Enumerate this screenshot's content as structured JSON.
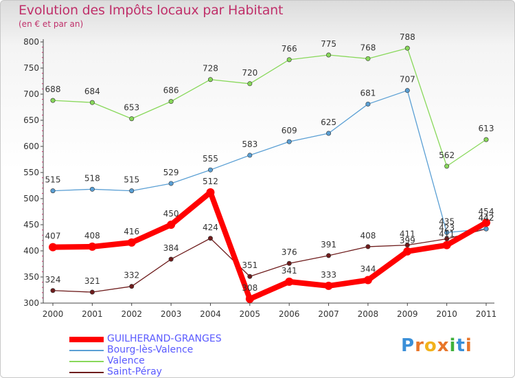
{
  "header": {
    "title": "Evolution des Impôts locaux par Habitant",
    "subtitle": "(en € et par an)"
  },
  "brand": {
    "letters": [
      "P",
      "r",
      "o",
      "x",
      "i",
      "t",
      "i"
    ],
    "colors": [
      "#3a8fd8",
      "#e8762a",
      "#f2b21c",
      "#e8762a",
      "#3fb13b",
      "#3a8fd8",
      "#e8762a"
    ]
  },
  "chart_data": {
    "type": "line",
    "x": [
      "2000",
      "2001",
      "2002",
      "2003",
      "2004",
      "2005",
      "2006",
      "2007",
      "2008",
      "2009",
      "2010",
      "2011"
    ],
    "ylim": [
      300,
      800
    ],
    "yticks": [
      300,
      350,
      400,
      450,
      500,
      550,
      600,
      650,
      700,
      750,
      800
    ],
    "grid": false,
    "legend_position": "bottom-left",
    "series": [
      {
        "name": "GUILHERAND-GRANGES",
        "color": "#ff0000",
        "values": [
          407,
          408,
          416,
          450,
          512,
          308,
          341,
          333,
          344,
          399,
          411,
          454
        ]
      },
      {
        "name": "Bourg-lès-Valence",
        "color": "#5a9fd4",
        "values": [
          515,
          518,
          515,
          529,
          555,
          583,
          609,
          625,
          681,
          707,
          435,
          442
        ]
      },
      {
        "name": "Valence",
        "color": "#88d85a",
        "values": [
          688,
          684,
          653,
          686,
          728,
          720,
          766,
          775,
          768,
          788,
          562,
          613
        ]
      },
      {
        "name": "Saint-Péray",
        "color": "#6e1c1c",
        "values": [
          324,
          321,
          332,
          384,
          424,
          351,
          376,
          391,
          408,
          411,
          423,
          442
        ]
      }
    ],
    "point_labels": [
      [
        "407",
        "408",
        "416",
        "450",
        "512",
        "308",
        "341",
        "333",
        "344",
        "399",
        "411",
        "454"
      ],
      [
        "515",
        "518",
        "515",
        "529",
        "555",
        "583",
        "609",
        "625",
        "681",
        "707",
        "435",
        "442"
      ],
      [
        "688",
        "684",
        "653",
        "686",
        "728",
        "720",
        "766",
        "775",
        "768",
        "788",
        "562",
        "613"
      ],
      [
        "324",
        "321",
        "332",
        "384",
        "424",
        "351",
        "376",
        "391",
        "408",
        "411",
        "423",
        "442"
      ]
    ]
  }
}
